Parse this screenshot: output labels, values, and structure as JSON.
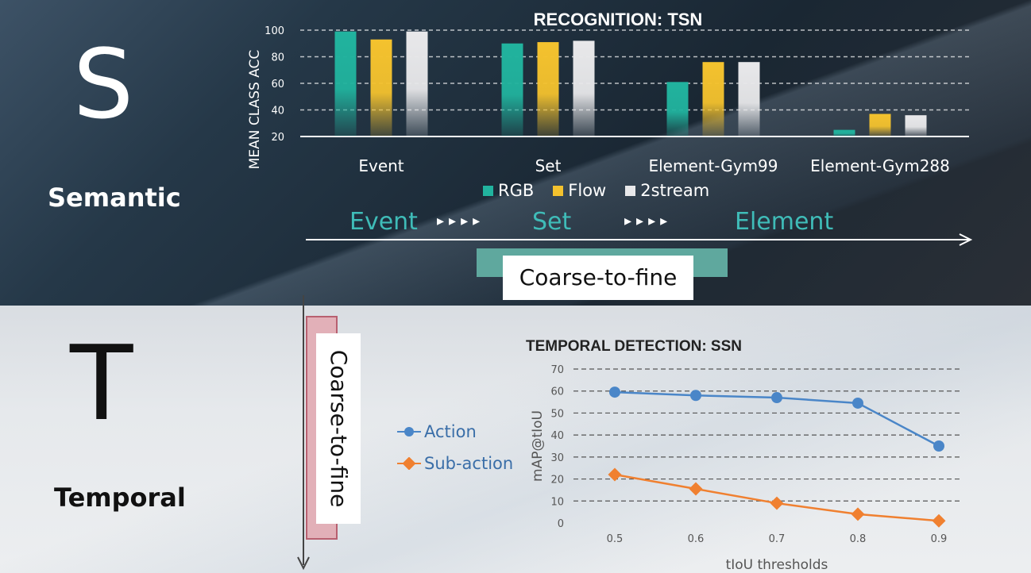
{
  "semantic": {
    "letter": "S",
    "label": "Semantic"
  },
  "temporal": {
    "letter": "T",
    "label": "Temporal"
  },
  "flow": {
    "event": "Event",
    "set": "Set",
    "element": "Element",
    "arrows": "▸▸▸▸"
  },
  "coarse_to_fine_top": "Coarse-to-fine",
  "coarse_to_fine_side": "Coarse-to-fine",
  "colors": {
    "rgb": "#21b39e",
    "flow": "#f4c22e",
    "twostream": "#e8e8ea",
    "action": "#4a86c8",
    "subaction": "#f08030"
  },
  "chart_data": [
    {
      "type": "bar",
      "title": "RECOGNITION: TSN",
      "xlabel": "",
      "ylabel": "MEAN CLASS ACC",
      "ylim": [
        20,
        100
      ],
      "yticks": [
        20,
        40,
        60,
        80,
        100
      ],
      "categories": [
        "Event",
        "Set",
        "Element-Gym99",
        "Element-Gym288"
      ],
      "series": [
        {
          "name": "RGB",
          "values": [
            99,
            90,
            61,
            25
          ]
        },
        {
          "name": "Flow",
          "values": [
            93,
            91,
            76,
            37
          ]
        },
        {
          "name": "2stream",
          "values": [
            99,
            92,
            76,
            36
          ]
        }
      ],
      "grid": true,
      "legend": "bottom"
    },
    {
      "type": "line",
      "title": "TEMPORAL DETECTION: SSN",
      "xlabel": "tIoU thresholds",
      "ylabel": "mAP@tIoU",
      "x": [
        "0.5",
        "0.6",
        "0.7",
        "0.8",
        "0.9"
      ],
      "ylim": [
        0,
        70
      ],
      "yticks": [
        0,
        10,
        20,
        30,
        40,
        50,
        60,
        70
      ],
      "series": [
        {
          "name": "Action",
          "values": [
            59.5,
            58,
            57,
            54.5,
            35
          ]
        },
        {
          "name": "Sub-action",
          "values": [
            22,
            15.5,
            9,
            4,
            1
          ]
        }
      ],
      "grid": true,
      "legend": "left"
    }
  ]
}
